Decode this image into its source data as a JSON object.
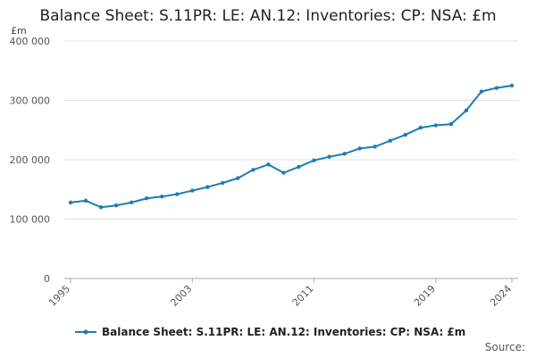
{
  "title": "Balance Sheet: S.11PR: LE: AN.12: Inventories: CP: NSA: £m",
  "unit_label": "£m",
  "source_label": "Source:",
  "colors": {
    "series": "#1f7bb6",
    "grid": "#e0e0e0",
    "axis": "#aaaaaa"
  },
  "chart_data": {
    "type": "line",
    "title": "Balance Sheet: S.11PR: LE: AN.12: Inventories: CP: NSA: £m",
    "ylabel": "£m",
    "xlabel": "",
    "ylim": [
      0,
      400000
    ],
    "xlim": [
      1995,
      2024
    ],
    "y_ticks": [
      0,
      100000,
      200000,
      300000,
      400000
    ],
    "y_tick_labels": [
      "0",
      "100 000",
      "200 000",
      "300 000",
      "400 000"
    ],
    "x_ticks": [
      1995,
      2003,
      2011,
      2019,
      2024
    ],
    "x_tick_labels": [
      "1995",
      "2003",
      "2011",
      "2019",
      "2024"
    ],
    "grid": true,
    "legend_position": "bottom",
    "series": [
      {
        "name": "Balance Sheet: S.11PR: LE: AN.12: Inventories: CP: NSA: £m",
        "x": [
          1995,
          1996,
          1997,
          1998,
          1999,
          2000,
          2001,
          2002,
          2003,
          2004,
          2005,
          2006,
          2007,
          2008,
          2009,
          2010,
          2011,
          2012,
          2013,
          2014,
          2015,
          2016,
          2017,
          2018,
          2019,
          2020,
          2021,
          2022,
          2023,
          2024
        ],
        "values": [
          128000,
          131000,
          120000,
          123000,
          128000,
          135000,
          138000,
          142000,
          148000,
          154000,
          161000,
          169000,
          183000,
          192000,
          178000,
          188000,
          199000,
          205000,
          210000,
          219000,
          222000,
          232000,
          242000,
          254000,
          258000,
          260000,
          283000,
          315000,
          321000,
          325000
        ]
      }
    ]
  }
}
